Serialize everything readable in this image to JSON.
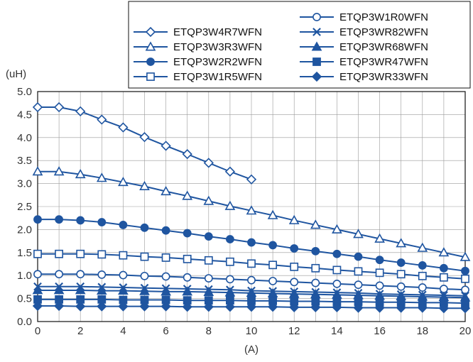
{
  "chart_data": {
    "type": "line",
    "title": "",
    "xlabel": "(A)",
    "ylabel": "(uH)",
    "xlim": [
      0,
      20
    ],
    "ylim": [
      0,
      5
    ],
    "xticks": [
      "0",
      "2",
      "4",
      "6",
      "8",
      "10",
      "12",
      "14",
      "16",
      "18",
      "20"
    ],
    "yticks": [
      "0.0",
      "0.5",
      "1.0",
      "1.5",
      "2.0",
      "2.5",
      "3.0",
      "3.5",
      "4.0",
      "4.5",
      "5.0"
    ],
    "grid": true,
    "legend_position": "top-right",
    "color": "#1f55a0",
    "series": [
      {
        "name": "ETQP3W4R7WFN",
        "marker": "diamond-open",
        "x": [
          0,
          1,
          2,
          3,
          4,
          5,
          6,
          7,
          8,
          9,
          10
        ],
        "y": [
          4.66,
          4.66,
          4.57,
          4.39,
          4.22,
          4.01,
          3.82,
          3.64,
          3.45,
          3.26,
          3.09
        ]
      },
      {
        "name": "ETQP3W3R3WFN",
        "marker": "triangle-open",
        "x": [
          0,
          1,
          2,
          3,
          4,
          5,
          6,
          7,
          8,
          9,
          10,
          11,
          12,
          13,
          14,
          15,
          16,
          17,
          18,
          19,
          20
        ],
        "y": [
          3.26,
          3.26,
          3.2,
          3.12,
          3.03,
          2.94,
          2.83,
          2.73,
          2.62,
          2.51,
          2.41,
          2.31,
          2.2,
          2.1,
          2.0,
          1.9,
          1.8,
          1.7,
          1.6,
          1.5,
          1.4
        ]
      },
      {
        "name": "ETQP3W2R2WFN",
        "marker": "circle-filled",
        "x": [
          0,
          1,
          2,
          3,
          4,
          5,
          6,
          7,
          8,
          9,
          10,
          11,
          12,
          13,
          14,
          15,
          16,
          17,
          18,
          19,
          20
        ],
        "y": [
          2.22,
          2.22,
          2.2,
          2.16,
          2.1,
          2.04,
          1.98,
          1.92,
          1.85,
          1.79,
          1.72,
          1.66,
          1.59,
          1.53,
          1.47,
          1.41,
          1.34,
          1.28,
          1.22,
          1.16,
          1.1
        ]
      },
      {
        "name": "ETQP3W1R5WFN",
        "marker": "square-open",
        "x": [
          0,
          1,
          2,
          3,
          4,
          5,
          6,
          7,
          8,
          9,
          10,
          11,
          12,
          13,
          14,
          15,
          16,
          17,
          18,
          19,
          20
        ],
        "y": [
          1.47,
          1.47,
          1.47,
          1.46,
          1.44,
          1.41,
          1.39,
          1.36,
          1.33,
          1.3,
          1.26,
          1.23,
          1.19,
          1.16,
          1.12,
          1.09,
          1.06,
          1.03,
          0.99,
          0.96,
          0.93
        ]
      },
      {
        "name": "ETQP3W1R0WFN",
        "marker": "circle-open",
        "x": [
          0,
          1,
          2,
          3,
          4,
          5,
          6,
          7,
          8,
          9,
          10,
          11,
          12,
          13,
          14,
          15,
          16,
          17,
          18,
          19,
          20
        ],
        "y": [
          1.03,
          1.03,
          1.03,
          1.02,
          1.01,
          0.99,
          0.98,
          0.96,
          0.94,
          0.92,
          0.9,
          0.88,
          0.86,
          0.84,
          0.82,
          0.8,
          0.78,
          0.76,
          0.74,
          0.71,
          0.69
        ]
      },
      {
        "name": "ETQP3WR82WFN",
        "marker": "x",
        "x": [
          0,
          1,
          2,
          3,
          4,
          5,
          6,
          7,
          8,
          9,
          10,
          11,
          12,
          13,
          14,
          15,
          16,
          17,
          18,
          19,
          20
        ],
        "y": [
          0.76,
          0.76,
          0.76,
          0.75,
          0.74,
          0.73,
          0.72,
          0.71,
          0.7,
          0.69,
          0.67,
          0.66,
          0.65,
          0.64,
          0.63,
          0.62,
          0.6,
          0.59,
          0.58,
          0.57,
          0.56
        ]
      },
      {
        "name": "ETQP3WR68WFN",
        "marker": "triangle-filled",
        "x": [
          0,
          1,
          2,
          3,
          4,
          5,
          6,
          7,
          8,
          9,
          10,
          11,
          12,
          13,
          14,
          15,
          16,
          17,
          18,
          19,
          20
        ],
        "y": [
          0.68,
          0.68,
          0.68,
          0.67,
          0.67,
          0.66,
          0.65,
          0.65,
          0.64,
          0.63,
          0.62,
          0.61,
          0.6,
          0.59,
          0.58,
          0.57,
          0.56,
          0.55,
          0.54,
          0.53,
          0.52
        ]
      },
      {
        "name": "ETQP3WR47WFN",
        "marker": "square-filled",
        "x": [
          0,
          1,
          2,
          3,
          4,
          5,
          6,
          7,
          8,
          9,
          10,
          11,
          12,
          13,
          14,
          15,
          16,
          17,
          18,
          19,
          20
        ],
        "y": [
          0.48,
          0.48,
          0.48,
          0.48,
          0.47,
          0.47,
          0.47,
          0.46,
          0.46,
          0.46,
          0.45,
          0.45,
          0.44,
          0.44,
          0.43,
          0.43,
          0.42,
          0.42,
          0.41,
          0.41,
          0.4
        ]
      },
      {
        "name": "ETQP3WR33WFN",
        "marker": "diamond-filled",
        "x": [
          0,
          1,
          2,
          3,
          4,
          5,
          6,
          7,
          8,
          9,
          10,
          11,
          12,
          13,
          14,
          15,
          16,
          17,
          18,
          19,
          20
        ],
        "y": [
          0.34,
          0.34,
          0.33,
          0.33,
          0.33,
          0.33,
          0.33,
          0.32,
          0.32,
          0.32,
          0.32,
          0.32,
          0.31,
          0.31,
          0.31,
          0.3,
          0.3,
          0.3,
          0.3,
          0.29,
          0.29
        ]
      }
    ]
  }
}
